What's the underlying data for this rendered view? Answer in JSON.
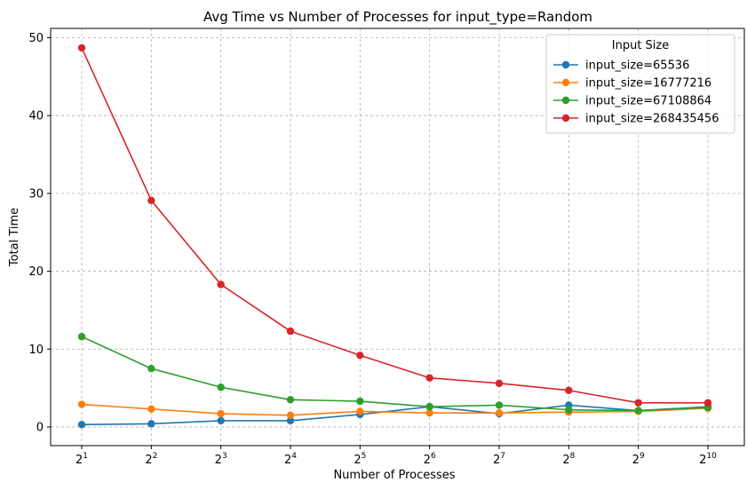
{
  "chart_data": {
    "type": "line",
    "title": "Avg Time vs Number of Processes for input_type=Random",
    "xlabel": "Number of Processes",
    "ylabel": "Total Time",
    "x_scale": "log2",
    "x": [
      2,
      4,
      8,
      16,
      32,
      64,
      128,
      256,
      512,
      1024
    ],
    "x_tick_labels": [
      {
        "base": "2",
        "exp": "1"
      },
      {
        "base": "2",
        "exp": "2"
      },
      {
        "base": "2",
        "exp": "3"
      },
      {
        "base": "2",
        "exp": "4"
      },
      {
        "base": "2",
        "exp": "5"
      },
      {
        "base": "2",
        "exp": "6"
      },
      {
        "base": "2",
        "exp": "7"
      },
      {
        "base": "2",
        "exp": "8"
      },
      {
        "base": "2",
        "exp": "9"
      },
      {
        "base": "2",
        "exp": "10"
      }
    ],
    "y_ticks": [
      0,
      10,
      20,
      30,
      40,
      50
    ],
    "y_tick_labels": [
      "0",
      "10",
      "20",
      "30",
      "40",
      "50"
    ],
    "ylim": [
      -2.4,
      51.2
    ],
    "grid": true,
    "legend": {
      "title": "Input Size",
      "placement": "top-right"
    },
    "series": [
      {
        "name": "input_size=65536",
        "color": "#1f77b4",
        "values": [
          0.3,
          0.4,
          0.8,
          0.8,
          1.6,
          2.6,
          1.7,
          2.8,
          2.1,
          2.6
        ]
      },
      {
        "name": "input_size=16777216",
        "color": "#ff7f0e",
        "values": [
          2.9,
          2.3,
          1.7,
          1.5,
          2.0,
          1.8,
          1.8,
          1.9,
          2.0,
          2.4
        ]
      },
      {
        "name": "input_size=67108864",
        "color": "#2ca02c",
        "values": [
          11.6,
          7.5,
          5.1,
          3.5,
          3.3,
          2.6,
          2.8,
          2.2,
          2.1,
          2.5
        ]
      },
      {
        "name": "input_size=268435456",
        "color": "#d62728",
        "values": [
          48.7,
          29.1,
          18.3,
          12.3,
          9.2,
          6.3,
          5.6,
          4.7,
          3.1,
          3.1
        ]
      }
    ]
  }
}
